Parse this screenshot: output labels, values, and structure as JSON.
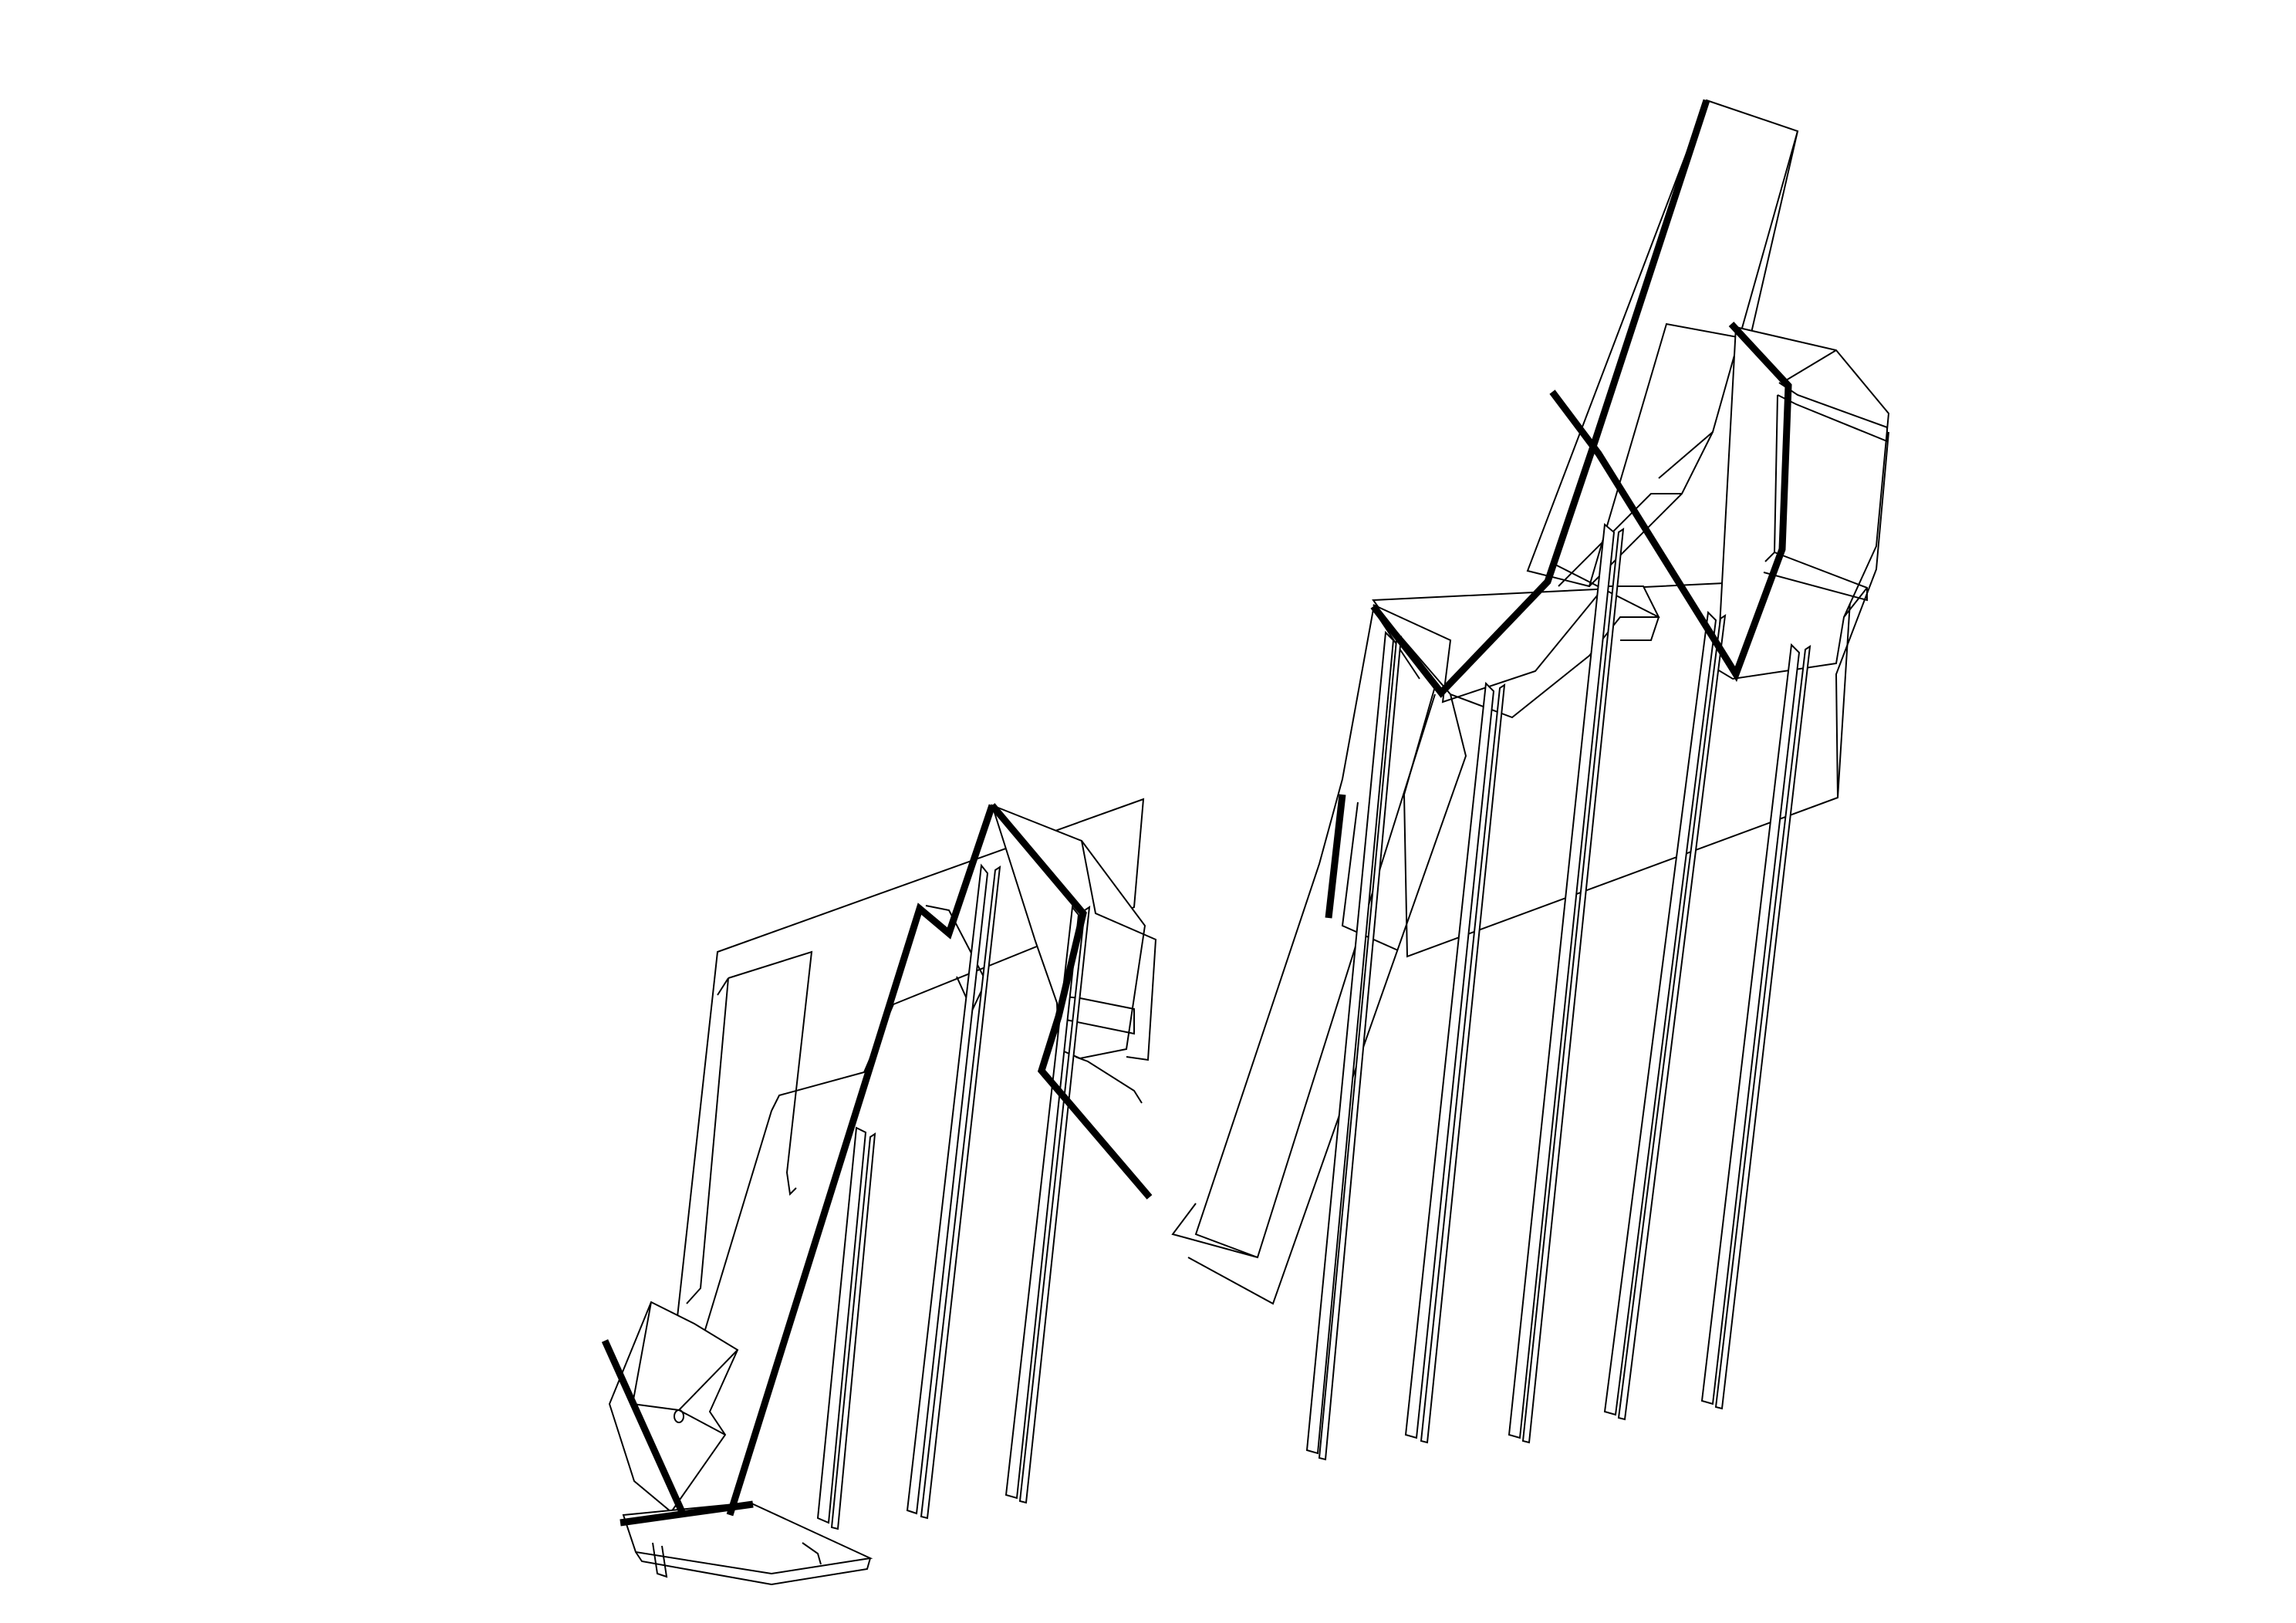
{
  "drawing": {
    "kind": "axonometric line drawing of a stepped staircase structure on stilts",
    "line_color": "#000000",
    "background_color": "#ffffff",
    "text_labels": []
  }
}
